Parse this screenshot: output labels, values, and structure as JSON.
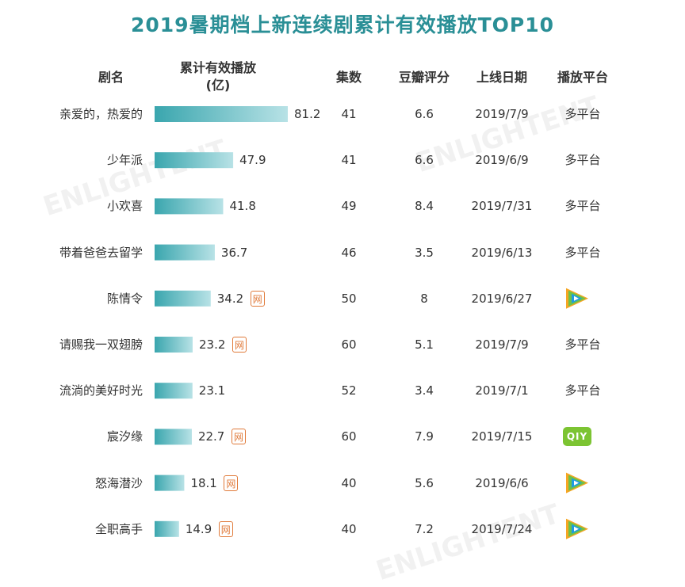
{
  "chart_data": {
    "type": "table",
    "title": "2019暑期档上新连续剧累计有效播放TOP10",
    "columns": {
      "name": "剧名",
      "play_line1": "累计有效播放",
      "play_line2": "(亿)",
      "episodes": "集数",
      "douban": "豆瓣评分",
      "date": "上线日期",
      "platform": "播放平台"
    },
    "series": [
      {
        "values": [
          81.2,
          47.9,
          41.8,
          36.7,
          34.2,
          23.2,
          23.1,
          22.7,
          18.1,
          14.9
        ]
      }
    ],
    "rows": [
      {
        "name": "亲爱的，热爱的",
        "value": "81.2",
        "badge": "",
        "episodes": "41",
        "douban": "6.6",
        "date": "2019/7/9",
        "platform": "多平台",
        "platform_icon": ""
      },
      {
        "name": "少年派",
        "value": "47.9",
        "badge": "",
        "episodes": "41",
        "douban": "6.6",
        "date": "2019/6/9",
        "platform": "多平台",
        "platform_icon": ""
      },
      {
        "name": "小欢喜",
        "value": "41.8",
        "badge": "",
        "episodes": "49",
        "douban": "8.4",
        "date": "2019/7/31",
        "platform": "多平台",
        "platform_icon": ""
      },
      {
        "name": "带着爸爸去留学",
        "value": "36.7",
        "badge": "",
        "episodes": "46",
        "douban": "3.5",
        "date": "2019/6/13",
        "platform": "多平台",
        "platform_icon": ""
      },
      {
        "name": "陈情令",
        "value": "34.2",
        "badge": "网",
        "episodes": "50",
        "douban": "8",
        "date": "2019/6/27",
        "platform": "",
        "platform_icon": "tencent-video-icon"
      },
      {
        "name": "请赐我一双翅膀",
        "value": "23.2",
        "badge": "网",
        "episodes": "60",
        "douban": "5.1",
        "date": "2019/7/9",
        "platform": "多平台",
        "platform_icon": ""
      },
      {
        "name": "流淌的美好时光",
        "value": "23.1",
        "badge": "",
        "episodes": "52",
        "douban": "3.4",
        "date": "2019/7/1",
        "platform": "多平台",
        "platform_icon": ""
      },
      {
        "name": "宸汐缘",
        "value": "22.7",
        "badge": "网",
        "episodes": "60",
        "douban": "7.9",
        "date": "2019/7/15",
        "platform": "QIY",
        "platform_icon": "iqiyi-icon"
      },
      {
        "name": "怒海潜沙",
        "value": "18.1",
        "badge": "网",
        "episodes": "40",
        "douban": "5.6",
        "date": "2019/6/6",
        "platform": "",
        "platform_icon": "tencent-video-icon"
      },
      {
        "name": "全职高手",
        "value": "14.9",
        "badge": "网",
        "episodes": "40",
        "douban": "7.2",
        "date": "2019/7/24",
        "platform": "",
        "platform_icon": "tencent-video-icon"
      }
    ],
    "xlim": [
      0,
      81.2
    ],
    "bar_color_start": "#3aa6ae",
    "bar_color_end": "#b8e2e6",
    "grid": false,
    "legend": "none"
  },
  "colors": {
    "title": "#2a8f96",
    "badge": "#e07a3a",
    "tencent_blue": "#1d9be2",
    "tencent_green": "#6cc24a",
    "tencent_orange": "#f6a623",
    "iqiyi": "#7cc432"
  },
  "watermark": {
    "text": "ENLIGHTENT"
  }
}
